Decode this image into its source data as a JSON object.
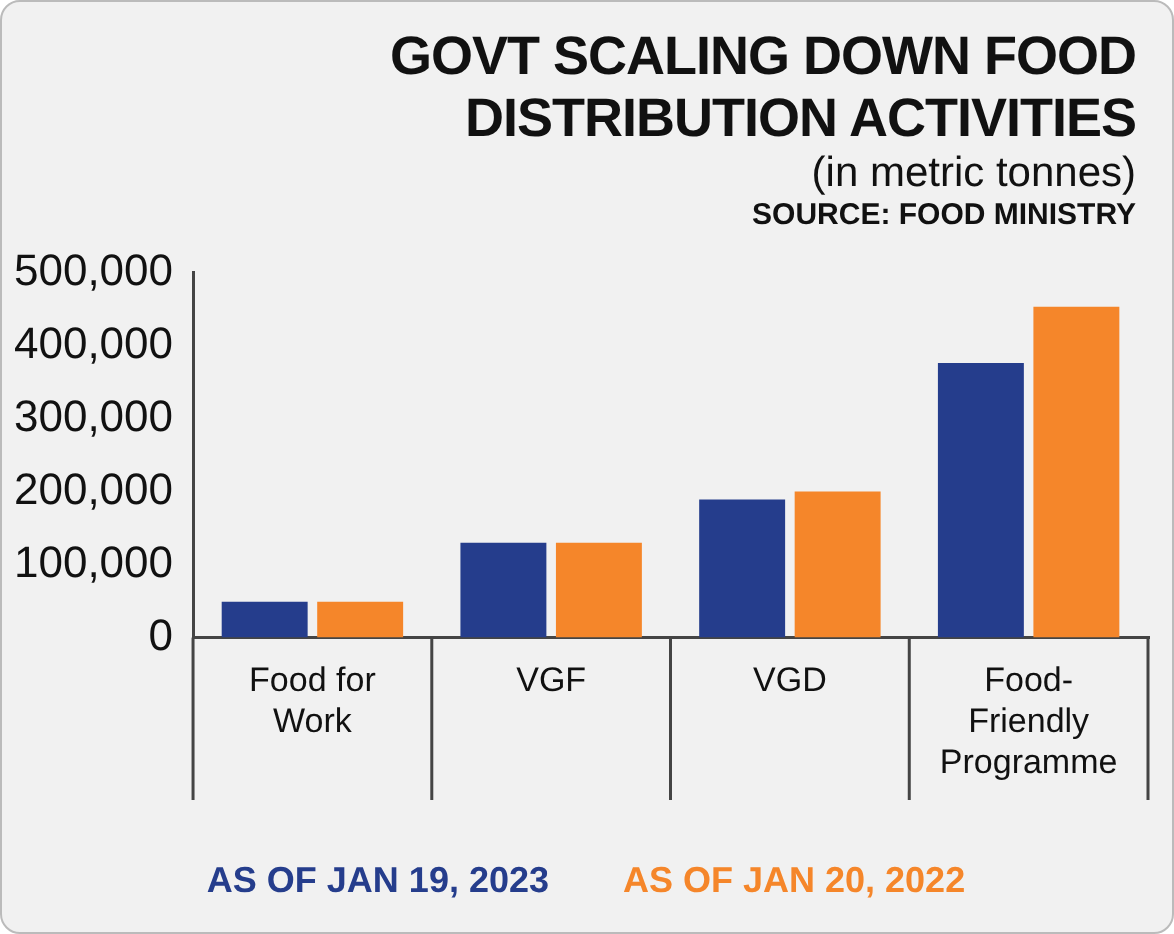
{
  "chart_data": {
    "type": "bar",
    "title": "GOVT SCALING DOWN FOOD DISTRIBUTION ACTIVITIES",
    "subtitle": "(in metric tonnes)",
    "annotations": [
      "SOURCE: FOOD MINISTRY"
    ],
    "categories": [
      "Food for Work",
      "VGF",
      "VGD",
      "Food-Friendly Programme"
    ],
    "series": [
      {
        "name": "AS OF JAN 19, 2023",
        "color": "#253d8c",
        "values": [
          49000,
          130000,
          189000,
          376000
        ]
      },
      {
        "name": "AS OF JAN 20, 2022",
        "color": "#f5862a",
        "values": [
          49000,
          130000,
          200000,
          453000
        ]
      }
    ],
    "ylim": [
      0,
      500000
    ],
    "yticks": [
      {
        "value": 0,
        "label": "0"
      },
      {
        "value": 100000,
        "label": "100,000"
      },
      {
        "value": 200000,
        "label": "200,000"
      },
      {
        "value": 300000,
        "label": "300,000"
      },
      {
        "value": 400000,
        "label": "400,000"
      },
      {
        "value": 500000,
        "label": "500,000"
      }
    ],
    "grid": false,
    "legend": "bottom"
  }
}
